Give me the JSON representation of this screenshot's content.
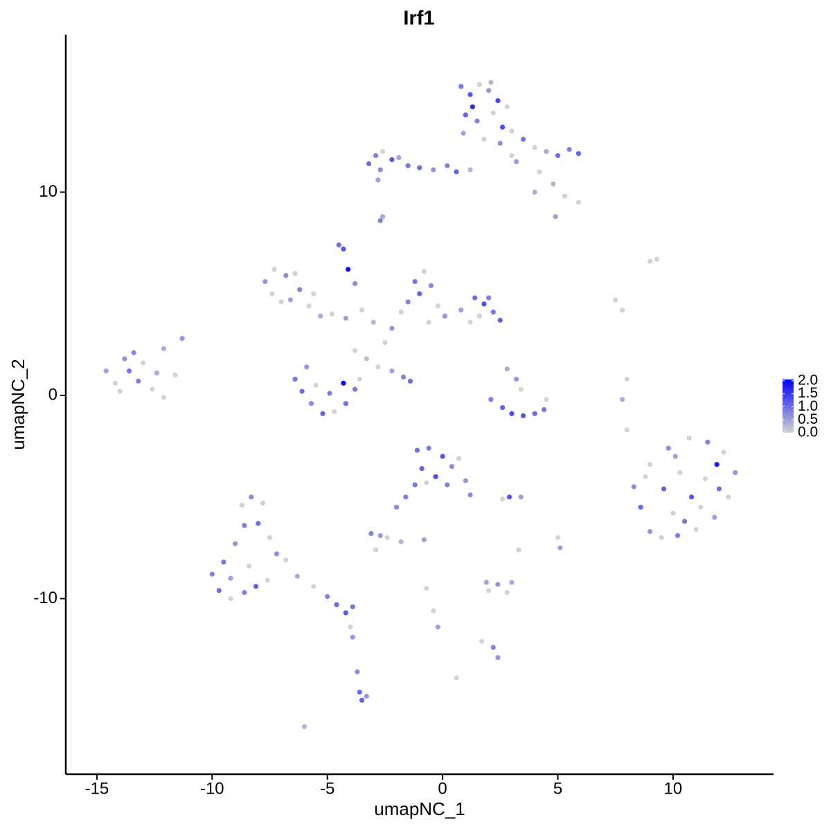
{
  "chart_data": {
    "type": "scatter",
    "title": "Irf1",
    "x_label": "umapNC_1",
    "y_label": "umapNC_2",
    "xlim": [
      -16.35,
      14.36
    ],
    "ylim": [
      -18.64,
      17.75
    ],
    "xticks": [
      -15,
      -10,
      -5,
      0,
      5,
      10
    ],
    "yticks": [
      -10,
      0,
      10
    ],
    "color_scale": {
      "low": "#d3d3d3",
      "high": "#0000ff",
      "lim": [
        0,
        2.05
      ],
      "ticks": [
        {
          "value": 0,
          "label": "0.0"
        },
        {
          "value": 0.5,
          "label": "0.5"
        },
        {
          "value": 1,
          "label": "1.0"
        },
        {
          "value": 1.5,
          "label": "1.5"
        },
        {
          "value": 2,
          "label": "2.0"
        }
      ]
    },
    "x": [
      0.8,
      1.2,
      1.6,
      2.0,
      2.4,
      2.8,
      1.0,
      1.5,
      2.2,
      2.6,
      0.9,
      1.8,
      2.5,
      1.3,
      2.1,
      3.0,
      3.5,
      4.0,
      4.5,
      5.0,
      5.5,
      5.9,
      4.2,
      4.8,
      5.3,
      3.2,
      5.9,
      4.9,
      4.0,
      3.0,
      -3.2,
      -2.9,
      -2.6,
      -2.2,
      -2.7,
      -1.9,
      -1.5,
      -1.0,
      -0.4,
      0.2,
      0.6,
      1.2,
      -2.8,
      -2.7,
      -2.6,
      -4.5,
      -4.3,
      -4.1,
      -3.8,
      -7.7,
      -7.3,
      -6.8,
      -7.4,
      -6.6,
      -7.0,
      -6.2,
      -5.8,
      -5.3,
      -4.8,
      -4.2,
      -5.6,
      -6.4,
      -3.5,
      -3.0,
      -2.5,
      -2.2,
      -1.8,
      -1.5,
      -1.2,
      -0.8,
      -1.0,
      -0.5,
      -0.2,
      0.1,
      -0.6,
      -3.8,
      -3.3,
      -2.8,
      1.4,
      1.8,
      2.2,
      2.5,
      1.6,
      2.0,
      0.8,
      1.2,
      -6.4,
      -6.1,
      -5.7,
      -5.2,
      -4.7,
      -4.2,
      -3.8,
      -3.6,
      -5.5,
      -4.9,
      -4.3,
      -5.9,
      -2.2,
      -1.7,
      -1.4,
      -14.6,
      -14.2,
      -13.8,
      -13.4,
      -13.0,
      -13.2,
      -12.6,
      -12.4,
      -14.0,
      -13.6,
      -12.1,
      -11.6,
      -11.3,
      -12.1,
      2.1,
      2.6,
      3.0,
      3.5,
      4.0,
      4.4,
      4.5,
      3.2,
      3.4,
      2.8,
      8.0,
      7.8,
      8.0,
      7.5,
      9.3,
      9.0,
      7.8,
      8.3,
      8.6,
      9.0,
      9.5,
      10.2,
      11.0,
      11.8,
      12.4,
      12.7,
      12.2,
      11.5,
      10.7,
      9.8,
      9.0,
      9.6,
      10.3,
      10.8,
      11.4,
      11.9,
      10.0,
      10.5,
      11.2,
      8.8,
      12.0,
      10.1,
      -1.1,
      -0.6,
      0.0,
      0.4,
      -0.9,
      -0.3,
      0.2,
      -0.7,
      0.7,
      1.0,
      1.2,
      -1.2,
      -1.6,
      -2.0,
      -1.8,
      -0.8,
      -3.1,
      -2.7,
      -2.4,
      -2.9,
      2.9,
      2.6,
      3.4,
      2.0,
      2.4,
      2.8,
      1.9,
      3.0,
      2.2,
      2.4,
      1.7,
      -0.7,
      -0.4,
      -0.2,
      0.6,
      3.3,
      5.1,
      5.0,
      -6.0,
      -10.0,
      -9.7,
      -9.2,
      -8.6,
      -8.1,
      -7.6,
      -9.5,
      -9.0,
      -8.6,
      -8.7,
      -8.3,
      -7.8,
      -8.0,
      -7.5,
      -7.2,
      -8.4,
      -6.8,
      -6.3,
      -5.6,
      -5.0,
      -4.6,
      -4.2,
      -3.9,
      -4.0,
      -3.9,
      -3.7,
      -3.6,
      -3.5,
      -3.3,
      -9.2
    ],
    "y": [
      15.2,
      14.8,
      15.3,
      15.0,
      14.5,
      14.2,
      13.8,
      13.5,
      13.9,
      13.2,
      12.9,
      12.6,
      12.4,
      14.2,
      15.4,
      13.0,
      12.6,
      12.2,
      12.0,
      11.8,
      12.1,
      11.9,
      11.0,
      10.4,
      9.8,
      11.5,
      9.5,
      8.8,
      10.0,
      11.8,
      11.4,
      11.8,
      12.0,
      11.6,
      11.1,
      11.7,
      11.3,
      11.2,
      11.1,
      11.3,
      11.0,
      11.1,
      10.6,
      8.6,
      8.8,
      7.4,
      7.2,
      6.2,
      5.5,
      5.6,
      6.2,
      5.9,
      5.0,
      4.7,
      4.6,
      5.2,
      4.4,
      3.9,
      4.0,
      3.8,
      5.0,
      6.0,
      4.2,
      3.6,
      2.6,
      3.3,
      4.1,
      4.6,
      5.6,
      6.1,
      5.0,
      5.4,
      4.4,
      3.9,
      3.6,
      2.2,
      1.8,
      1.4,
      4.8,
      4.5,
      4.1,
      3.7,
      3.9,
      4.8,
      4.2,
      3.6,
      0.8,
      0.2,
      -0.4,
      -0.9,
      -0.8,
      -0.4,
      0.3,
      0.8,
      0.5,
      0.1,
      0.6,
      1.4,
      1.2,
      0.9,
      0.7,
      1.2,
      0.6,
      1.8,
      2.1,
      1.6,
      0.7,
      0.3,
      1.1,
      0.2,
      1.2,
      -0.1,
      1.0,
      2.8,
      2.3,
      -0.2,
      -0.6,
      -0.9,
      -1.0,
      -0.9,
      -0.7,
      -0.2,
      0.8,
      0.3,
      1.3,
      0.8,
      -0.2,
      -1.7,
      4.7,
      6.7,
      6.6,
      4.2,
      -4.5,
      -5.5,
      -6.7,
      -7.0,
      -6.9,
      -6.6,
      -6.0,
      -5.0,
      -3.8,
      -2.8,
      -2.3,
      -2.1,
      -2.6,
      -3.4,
      -4.6,
      -3.8,
      -5.0,
      -4.1,
      -3.4,
      -5.8,
      -6.2,
      -5.5,
      -4.0,
      -4.6,
      -3.0,
      -2.7,
      -2.6,
      -3.0,
      -3.5,
      -3.6,
      -4.0,
      -4.4,
      -4.3,
      -3.1,
      -4.2,
      -4.9,
      -4.4,
      -5.0,
      -5.5,
      -7.2,
      -7.1,
      -6.8,
      -6.9,
      -7.0,
      -7.6,
      -5.0,
      -5.1,
      -5.0,
      -9.6,
      -9.3,
      -9.7,
      -9.2,
      -9.2,
      -12.4,
      -12.9,
      -12.1,
      -9.5,
      -10.6,
      -11.4,
      -13.9,
      -7.6,
      -7.5,
      -7.0,
      -16.3,
      -8.8,
      -9.6,
      -10.0,
      -9.7,
      -9.4,
      -9.1,
      -8.2,
      -7.3,
      -6.4,
      -5.4,
      -5.0,
      -5.3,
      -6.3,
      -7.0,
      -7.8,
      -8.4,
      -8.1,
      -8.9,
      -9.4,
      -9.9,
      -10.3,
      -10.7,
      -10.4,
      -11.4,
      -11.9,
      -13.6,
      -14.6,
      -15.0,
      -14.8,
      -9.0
    ],
    "values": [
      0.9,
      1.2,
      0,
      0.6,
      1.4,
      0,
      1.1,
      0.8,
      0,
      1.3,
      0.5,
      0,
      0.7,
      1.6,
      0.3,
      0,
      0.9,
      0,
      0.4,
      1.0,
      0.8,
      1.1,
      0,
      0.3,
      0,
      0.6,
      0,
      0.5,
      0.4,
      0,
      1.0,
      0.8,
      0,
      1.2,
      0.7,
      0.5,
      0.9,
      1.0,
      0.6,
      0.8,
      1.1,
      0.3,
      0.5,
      0.8,
      0.4,
      1.0,
      1.2,
      1.9,
      0.7,
      0.6,
      0,
      0.7,
      0,
      0.5,
      0,
      0.8,
      0,
      0.4,
      0,
      0.5,
      0,
      0,
      0,
      0.3,
      0,
      0.6,
      0,
      0.8,
      0.9,
      0,
      1.1,
      0.7,
      0,
      0.6,
      0,
      0,
      0.2,
      0,
      1.0,
      1.3,
      0.9,
      1.1,
      0,
      0.8,
      0.5,
      0,
      0.9,
      1.0,
      0.7,
      1.1,
      0,
      1.0,
      0.9,
      0,
      0,
      0.8,
      2.0,
      0.6,
      0.5,
      0.8,
      1.0,
      0.5,
      0,
      0.6,
      0.7,
      0,
      0.8,
      0,
      0.4,
      0,
      0.9,
      0,
      0,
      0.6,
      0.4,
      0.8,
      1.1,
      1.3,
      1.2,
      1.0,
      0.9,
      0,
      0.6,
      0,
      0.4,
      0,
      0.4,
      0,
      0,
      0,
      0,
      0,
      0.7,
      1.0,
      0.6,
      0,
      0.8,
      0,
      0.5,
      0,
      0.6,
      0,
      0.8,
      0,
      0.7,
      0,
      1.1,
      0,
      1.2,
      0,
      1.8,
      0,
      0.9,
      0,
      0,
      1.0,
      0.5,
      1.0,
      0.9,
      1.2,
      0.7,
      1.1,
      1.3,
      0.8,
      0,
      0,
      0.6,
      0.7,
      0.9,
      0.8,
      0.7,
      0.3,
      0.5,
      0.8,
      0.6,
      0,
      0,
      1.2,
      0,
      0.5,
      0,
      0.6,
      0,
      0.5,
      0.4,
      0.8,
      0.6,
      0,
      0,
      0,
      0.5,
      0,
      0,
      0.5,
      0,
      0.3,
      0.8,
      1.0,
      0,
      0.8,
      1.1,
      0,
      0.9,
      0.6,
      0.8,
      0,
      0.7,
      0,
      1.0,
      0,
      0.7,
      0,
      0,
      0.4,
      0,
      0.8,
      1.0,
      1.2,
      0.9,
      0,
      0.6,
      0.7,
      1.0,
      1.1,
      0.6,
      0.5
    ]
  }
}
